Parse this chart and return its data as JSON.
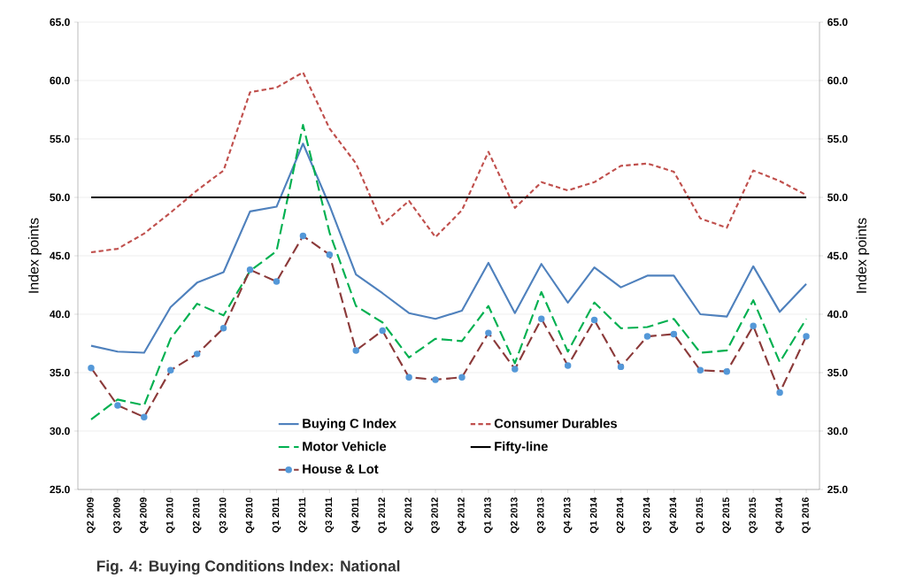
{
  "chart_data": {
    "type": "line",
    "title": "Fig. 4: Buying Conditions Index: National",
    "ylabel": "Index points",
    "y2label": "Index points",
    "categories": [
      "Q2 2009",
      "Q3 2009",
      "Q4 2009",
      "Q1 2010",
      "Q2 2010",
      "Q3 2010",
      "Q4 2010",
      "Q1 2011",
      "Q2 2011",
      "Q3 2011",
      "Q4 2011",
      "Q1 2012",
      "Q2 2012",
      "Q3 2012",
      "Q4 2012",
      "Q1 2013",
      "Q2 2013",
      "Q3 2013",
      "Q4 2013",
      "Q1 2014",
      "Q2 2014",
      "Q3 2014",
      "Q4 2014",
      "Q1 2015",
      "Q2 2015",
      "Q3 2015",
      "Q4 2014",
      "Q1 2016"
    ],
    "series": [
      {
        "name": "Buying C Index",
        "color": "#4f81bd",
        "line_style": "solid",
        "values": [
          37.3,
          36.8,
          36.7,
          40.6,
          42.7,
          43.6,
          48.8,
          49.2,
          54.6,
          49.3,
          43.4,
          41.8,
          40.1,
          39.6,
          40.3,
          44.4,
          40.1,
          44.3,
          41.0,
          44.0,
          42.3,
          43.3,
          43.3,
          40.0,
          39.8,
          44.1,
          40.2,
          42.6
        ]
      },
      {
        "name": "Consumer Durables",
        "color": "#c0504d",
        "line_style": "dotted",
        "values": [
          45.3,
          45.6,
          46.9,
          48.7,
          50.6,
          52.3,
          59.0,
          59.4,
          60.7,
          55.9,
          52.9,
          47.7,
          49.7,
          46.6,
          48.9,
          53.9,
          49.1,
          51.3,
          50.6,
          51.3,
          52.7,
          52.9,
          52.2,
          48.2,
          47.4,
          52.3,
          51.4,
          50.2
        ]
      },
      {
        "name": "Motor Vehicle",
        "color": "#00b050",
        "line_style": "dashed",
        "values": [
          31.0,
          32.7,
          32.2,
          37.9,
          40.9,
          39.9,
          43.7,
          45.4,
          56.2,
          47.0,
          40.7,
          39.3,
          36.3,
          37.9,
          37.7,
          40.7,
          35.8,
          41.9,
          36.8,
          41.0,
          38.8,
          38.9,
          39.6,
          36.7,
          36.9,
          41.2,
          35.9,
          39.6
        ]
      },
      {
        "name": "Fifty-line",
        "color": "#000000",
        "line_style": "solid",
        "values": [
          50,
          50,
          50,
          50,
          50,
          50,
          50,
          50,
          50,
          50,
          50,
          50,
          50,
          50,
          50,
          50,
          50,
          50,
          50,
          50,
          50,
          50,
          50,
          50,
          50,
          50,
          50,
          50
        ]
      },
      {
        "name": "House & Lot",
        "color": "#8b3a3a",
        "line_style": "dashed",
        "marker": "circle",
        "values": [
          35.4,
          32.2,
          31.2,
          35.2,
          36.6,
          38.8,
          43.8,
          42.8,
          46.7,
          45.1,
          36.9,
          38.6,
          34.6,
          34.4,
          34.6,
          38.4,
          35.3,
          39.6,
          35.6,
          39.5,
          35.5,
          38.1,
          38.3,
          35.2,
          35.1,
          39.0,
          33.3,
          38.1
        ]
      }
    ],
    "ylim": [
      25,
      65
    ],
    "yticks": [
      {
        "value": 25,
        "label": "25.0"
      },
      {
        "value": 30,
        "label": "30.0"
      },
      {
        "value": 35,
        "label": "35.0"
      },
      {
        "value": 40,
        "label": "40.0"
      },
      {
        "value": 45,
        "label": "45.0"
      },
      {
        "value": 50,
        "label": "50.0"
      },
      {
        "value": 55,
        "label": "55.0"
      },
      {
        "value": 60,
        "label": "60.0"
      },
      {
        "value": 65,
        "label": "65.0"
      }
    ],
    "y2lim": [
      25,
      65
    ],
    "y2ticks": [
      {
        "value": 25,
        "label": "25.0"
      },
      {
        "value": 30,
        "label": "30.0"
      },
      {
        "value": 35,
        "label": "35.0"
      },
      {
        "value": 40,
        "label": "40.0"
      },
      {
        "value": 45,
        "label": "45.0"
      },
      {
        "value": 50,
        "label": "50.0"
      },
      {
        "value": 55,
        "label": "55.0"
      },
      {
        "value": 60,
        "label": "60.0"
      },
      {
        "value": 65,
        "label": "65.0"
      }
    ],
    "grid": "y",
    "legend": "bottom"
  }
}
